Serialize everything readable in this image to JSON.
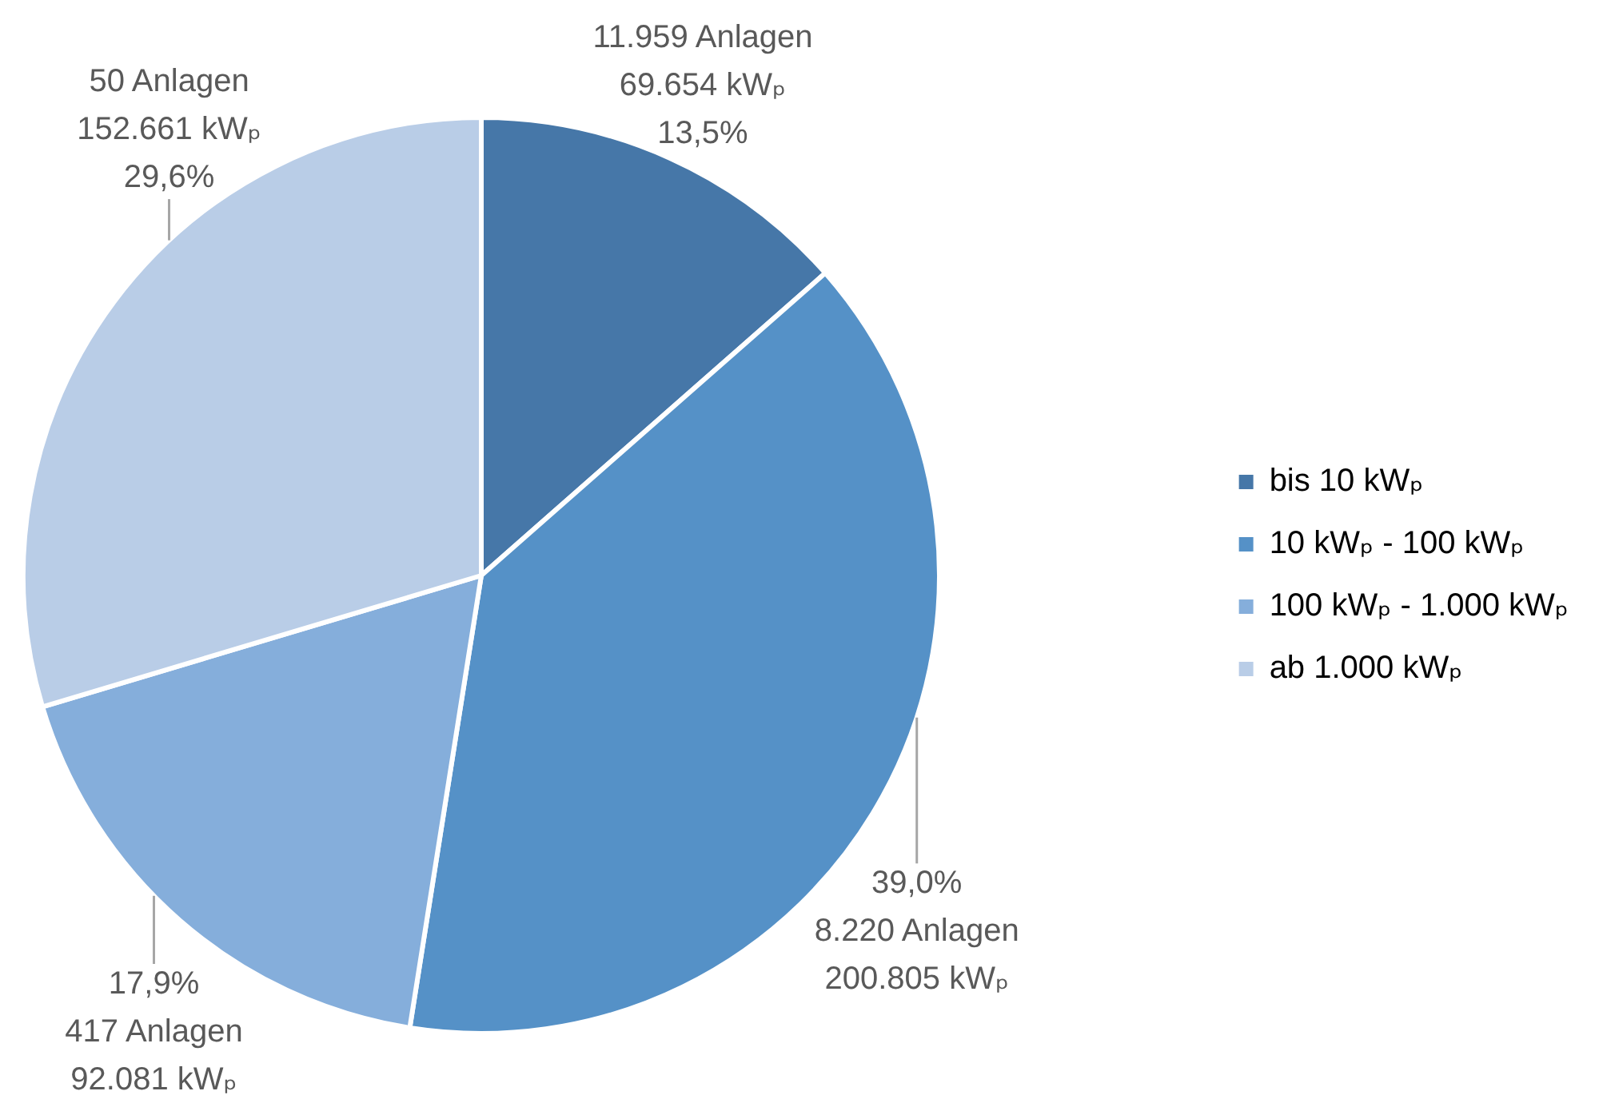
{
  "chart_data": {
    "type": "pie",
    "categories": [
      "bis 10 kWₚ",
      "10 kWₚ - 100 kWₚ",
      "100 kWₚ - 1.000 kWₚ",
      "ab 1.000 kWₚ"
    ],
    "values": [
      69654,
      200805,
      92081,
      152661
    ],
    "colors": [
      "#4677a8",
      "#5591c7",
      "#85aedb",
      "#b9cde7"
    ],
    "value_labels": [
      "11.959 Anlagen\n69.654 kWₚ\n13,5%",
      "39,0%\n8.220 Anlagen\n200.805 kWₚ",
      "17,9%\n417 Anlagen\n92.081 kWₚ",
      "50 Anlagen\n152.661 kWₚ\n29,6%"
    ],
    "legend": "right"
  }
}
